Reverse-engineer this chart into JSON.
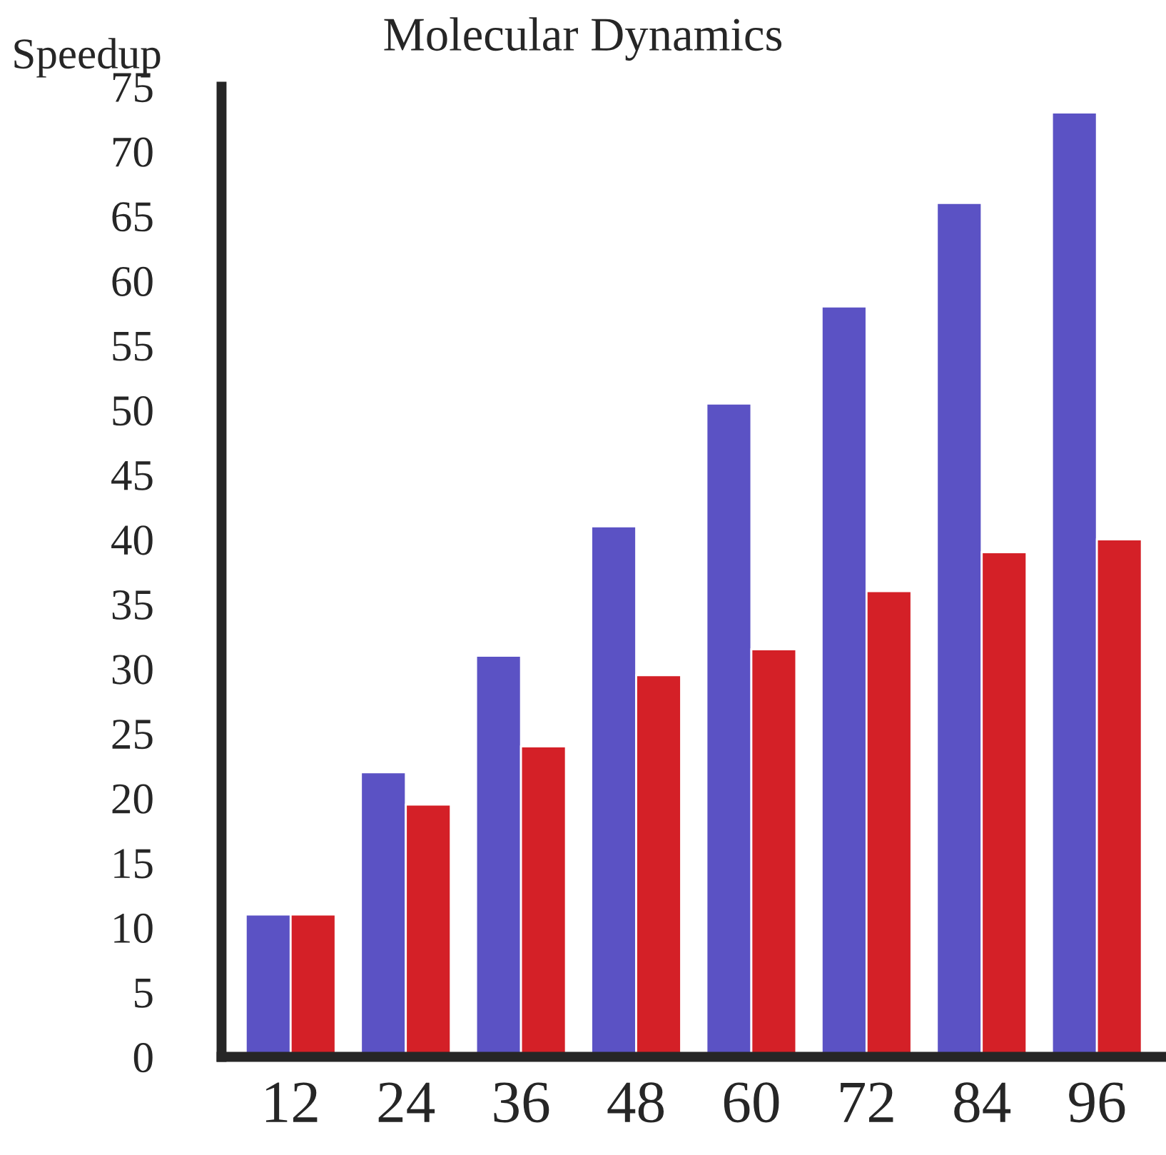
{
  "chart_data": {
    "type": "bar",
    "title": "Molecular Dynamics",
    "ylabel": "Speedup",
    "categories": [
      "12",
      "24",
      "36",
      "48",
      "60",
      "72",
      "84",
      "96"
    ],
    "series": [
      {
        "color": "#5b52c4",
        "values": [
          11,
          22,
          31,
          41,
          50.5,
          58,
          66,
          73
        ]
      },
      {
        "color": "#d42027",
        "values": [
          11,
          19.5,
          24,
          29.5,
          31.5,
          36,
          39,
          40
        ]
      }
    ],
    "ylim": [
      0,
      75
    ],
    "yticks": [
      0,
      5,
      10,
      15,
      20,
      25,
      30,
      35,
      40,
      45,
      50,
      55,
      60,
      65,
      70,
      75
    ],
    "grid": false,
    "legend": false
  }
}
